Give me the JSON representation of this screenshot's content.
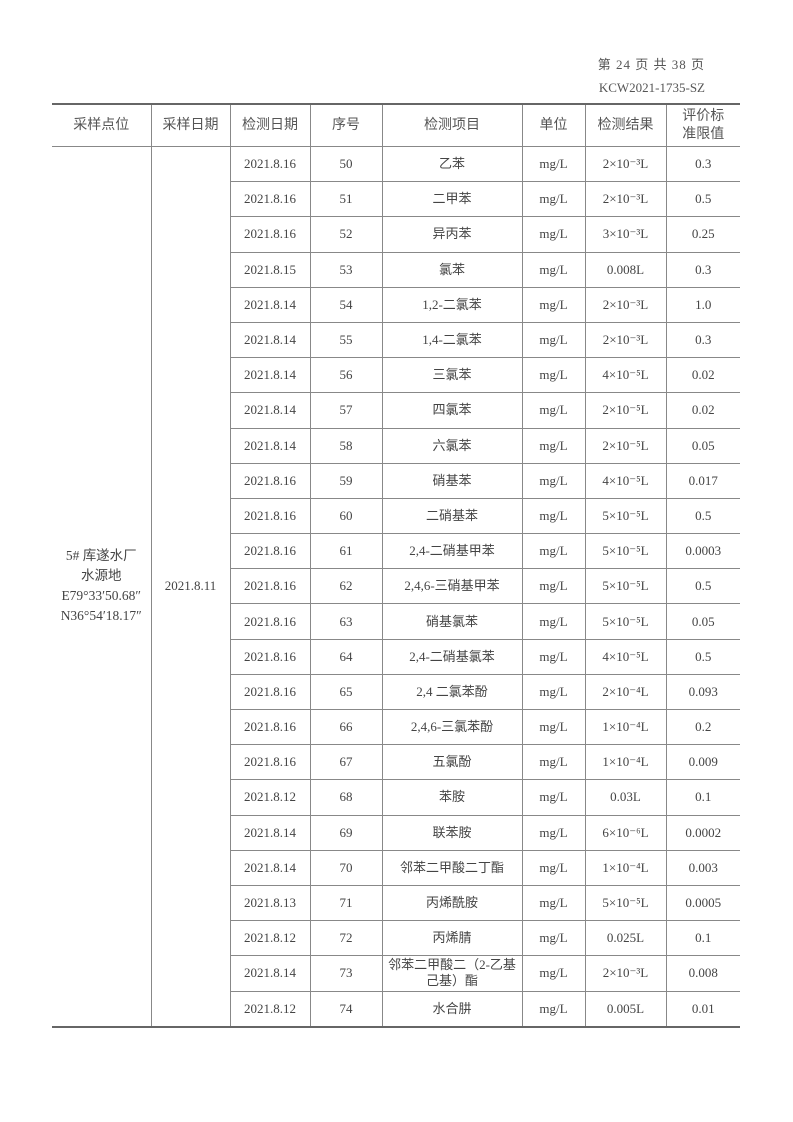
{
  "header": {
    "page": "第 24 页 共 38 页",
    "code": "KCW2021-1735-SZ"
  },
  "table": {
    "columns": [
      "采样点位",
      "采样日期",
      "检测日期",
      "序号",
      "检测项目",
      "单位",
      "检测结果",
      "评价标准限值"
    ],
    "col_limit_line1": "评价标",
    "col_limit_line2": "准限值",
    "location": {
      "line1": "5# 库遂水厂",
      "line2": "水源地",
      "line3": "E79°33′50.68″",
      "line4": "N36°54′18.17″"
    },
    "sample_date": "2021.8.11",
    "rows": [
      [
        "2021.8.16",
        "50",
        "乙苯",
        "mg/L",
        "2×10⁻³L",
        "0.3"
      ],
      [
        "2021.8.16",
        "51",
        "二甲苯",
        "mg/L",
        "2×10⁻³L",
        "0.5"
      ],
      [
        "2021.8.16",
        "52",
        "异丙苯",
        "mg/L",
        "3×10⁻³L",
        "0.25"
      ],
      [
        "2021.8.15",
        "53",
        "氯苯",
        "mg/L",
        "0.008L",
        "0.3"
      ],
      [
        "2021.8.14",
        "54",
        "1,2-二氯苯",
        "mg/L",
        "2×10⁻³L",
        "1.0"
      ],
      [
        "2021.8.14",
        "55",
        "1,4-二氯苯",
        "mg/L",
        "2×10⁻³L",
        "0.3"
      ],
      [
        "2021.8.14",
        "56",
        "三氯苯",
        "mg/L",
        "4×10⁻⁵L",
        "0.02"
      ],
      [
        "2021.8.14",
        "57",
        "四氯苯",
        "mg/L",
        "2×10⁻⁵L",
        "0.02"
      ],
      [
        "2021.8.14",
        "58",
        "六氯苯",
        "mg/L",
        "2×10⁻⁵L",
        "0.05"
      ],
      [
        "2021.8.16",
        "59",
        "硝基苯",
        "mg/L",
        "4×10⁻⁵L",
        "0.017"
      ],
      [
        "2021.8.16",
        "60",
        "二硝基苯",
        "mg/L",
        "5×10⁻⁵L",
        "0.5"
      ],
      [
        "2021.8.16",
        "61",
        "2,4-二硝基甲苯",
        "mg/L",
        "5×10⁻⁵L",
        "0.0003"
      ],
      [
        "2021.8.16",
        "62",
        "2,4,6-三硝基甲苯",
        "mg/L",
        "5×10⁻⁵L",
        "0.5"
      ],
      [
        "2021.8.16",
        "63",
        "硝基氯苯",
        "mg/L",
        "5×10⁻⁵L",
        "0.05"
      ],
      [
        "2021.8.16",
        "64",
        "2,4-二硝基氯苯",
        "mg/L",
        "4×10⁻⁵L",
        "0.5"
      ],
      [
        "2021.8.16",
        "65",
        "2,4 二氯苯酚",
        "mg/L",
        "2×10⁻⁴L",
        "0.093"
      ],
      [
        "2021.8.16",
        "66",
        "2,4,6-三氯苯酚",
        "mg/L",
        "1×10⁻⁴L",
        "0.2"
      ],
      [
        "2021.8.16",
        "67",
        "五氯酚",
        "mg/L",
        "1×10⁻⁴L",
        "0.009"
      ],
      [
        "2021.8.12",
        "68",
        "苯胺",
        "mg/L",
        "0.03L",
        "0.1"
      ],
      [
        "2021.8.14",
        "69",
        "联苯胺",
        "mg/L",
        "6×10⁻⁶L",
        "0.0002"
      ],
      [
        "2021.8.14",
        "70",
        "邻苯二甲酸二丁酯",
        "mg/L",
        "1×10⁻⁴L",
        "0.003"
      ],
      [
        "2021.8.13",
        "71",
        "丙烯酰胺",
        "mg/L",
        "5×10⁻⁵L",
        "0.0005"
      ],
      [
        "2021.8.12",
        "72",
        "丙烯腈",
        "mg/L",
        "0.025L",
        "0.1"
      ],
      [
        "2021.8.14",
        "73",
        "邻苯二甲酸二（2-乙基己基）酯",
        "mg/L",
        "2×10⁻³L",
        "0.008"
      ],
      [
        "2021.8.12",
        "74",
        "水合肼",
        "mg/L",
        "0.005L",
        "0.01"
      ]
    ]
  }
}
